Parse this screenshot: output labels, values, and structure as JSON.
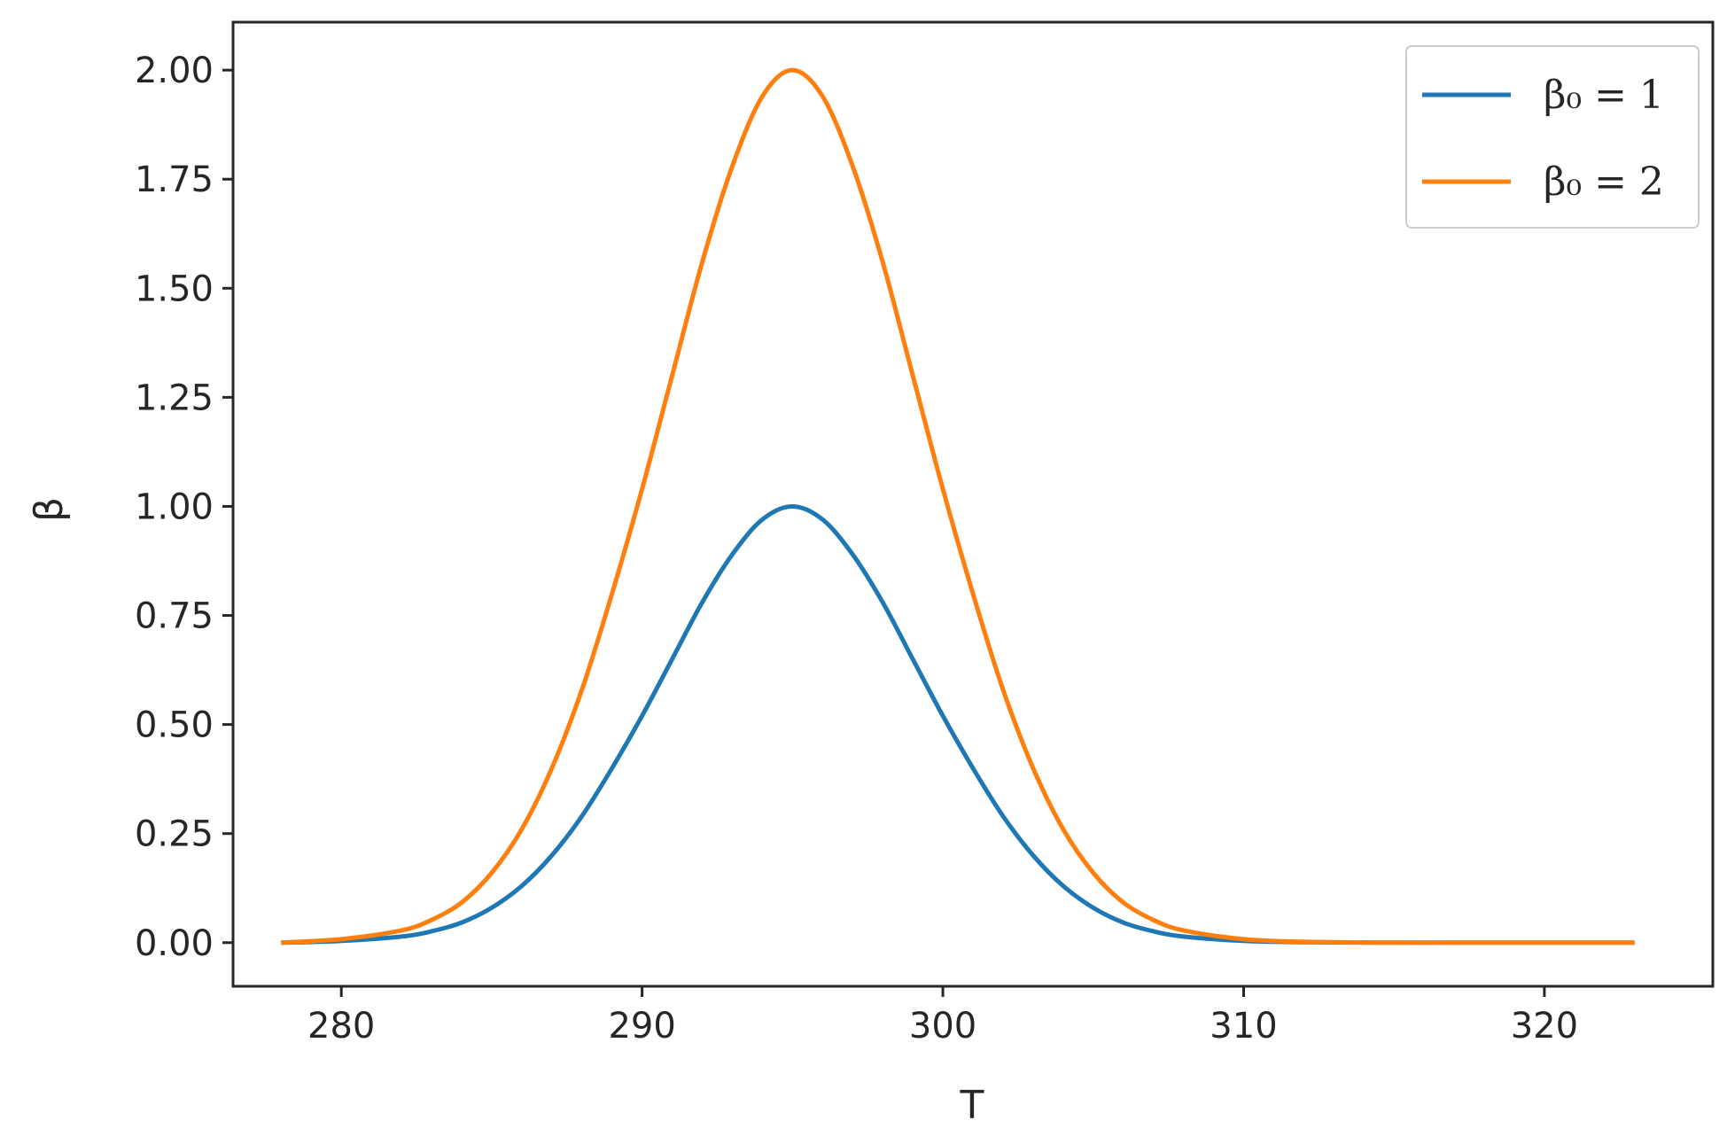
{
  "chart_data": {
    "type": "line",
    "title": "",
    "xlabel": "T",
    "ylabel": "β",
    "xlim": [
      276.4,
      325.6
    ],
    "ylim": [
      -0.1,
      2.11
    ],
    "xticks": [
      280,
      290,
      300,
      310,
      320
    ],
    "xtick_labels": [
      "280",
      "290",
      "300",
      "310",
      "320"
    ],
    "yticks": [
      0,
      0.25,
      0.5,
      0.75,
      1.0,
      1.25,
      1.5,
      1.75,
      2.0
    ],
    "ytick_labels": [
      "0.00",
      "0.25",
      "0.50",
      "0.75",
      "1.00",
      "1.25",
      "1.50",
      "1.75",
      "2.00"
    ],
    "grid": false,
    "legend_position": "top-right",
    "series": [
      {
        "name": "β₀ = 1",
        "legend_label": "β₀ = 1",
        "color": "#1f77b4",
        "x": [
          278,
          280,
          282,
          283,
          284,
          285,
          286,
          287,
          288,
          289,
          290,
          291,
          292,
          293,
          294,
          295,
          296,
          297,
          298,
          299,
          300,
          301,
          302,
          303,
          304,
          305,
          306,
          307,
          308,
          310,
          312,
          315,
          318,
          320,
          323
        ],
        "y": [
          0.0,
          0.004,
          0.014,
          0.026,
          0.046,
          0.08,
          0.13,
          0.2,
          0.29,
          0.4,
          0.52,
          0.65,
          0.78,
          0.89,
          0.97,
          1.0,
          0.97,
          0.89,
          0.78,
          0.65,
          0.52,
          0.4,
          0.29,
          0.2,
          0.13,
          0.08,
          0.046,
          0.026,
          0.014,
          0.004,
          0.001,
          0.0,
          0.0,
          0.0,
          0.0
        ]
      },
      {
        "name": "β₀ = 2",
        "legend_label": "β₀ = 2",
        "color": "#ff7f0e",
        "x": [
          278,
          280,
          282,
          283,
          284,
          285,
          286,
          287,
          288,
          289,
          290,
          291,
          292,
          293,
          294,
          295,
          296,
          297,
          298,
          299,
          300,
          301,
          302,
          303,
          304,
          305,
          306,
          307,
          308,
          310,
          312,
          315,
          318,
          320,
          323
        ],
        "y": [
          0.0,
          0.008,
          0.028,
          0.052,
          0.092,
          0.16,
          0.26,
          0.4,
          0.58,
          0.8,
          1.04,
          1.3,
          1.56,
          1.78,
          1.94,
          2.0,
          1.94,
          1.78,
          1.56,
          1.3,
          1.04,
          0.8,
          0.58,
          0.4,
          0.26,
          0.16,
          0.092,
          0.052,
          0.028,
          0.008,
          0.002,
          0.0,
          0.0,
          0.0,
          0.0
        ]
      }
    ]
  }
}
